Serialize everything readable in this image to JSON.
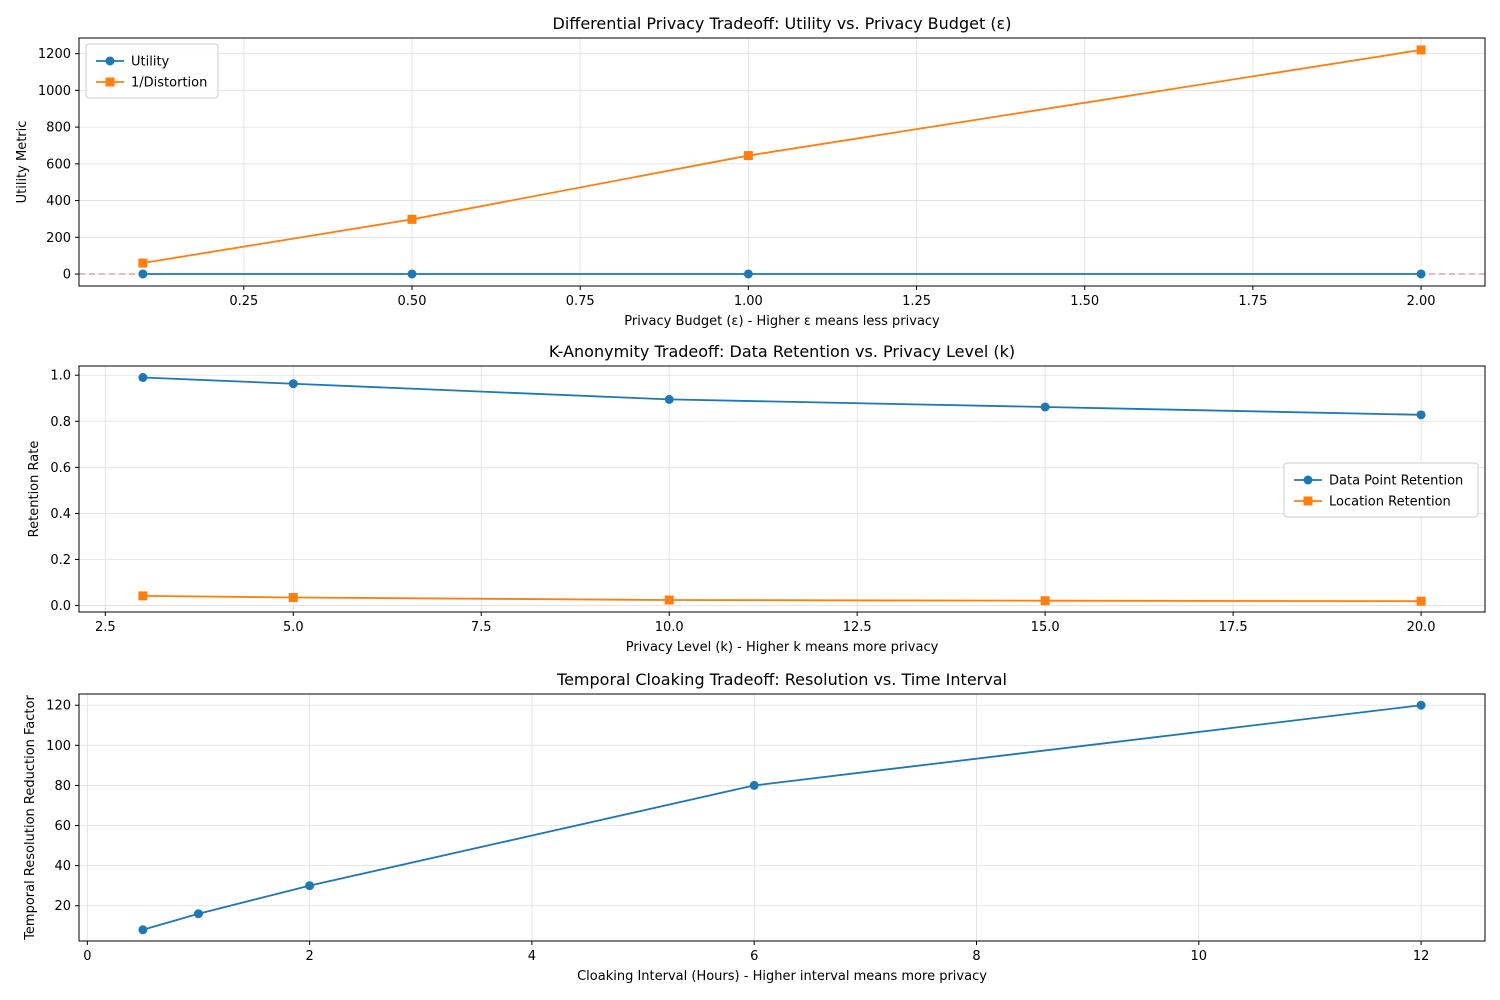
{
  "chart_data": [
    {
      "type": "line",
      "title": "Differential Privacy Tradeoff: Utility vs. Privacy Budget (ε)",
      "xlabel": "Privacy Budget (ε) - Higher ε means less privacy",
      "ylabel": "Utility Metric",
      "xlim": [
        0.005,
        2.095
      ],
      "ylim": [
        -65,
        1285
      ],
      "xticks": [
        0.25,
        0.5,
        0.75,
        1.0,
        1.25,
        1.5,
        1.75,
        2.0
      ],
      "xtick_labels": [
        "0.25",
        "0.50",
        "0.75",
        "1.00",
        "1.25",
        "1.50",
        "1.75",
        "2.00"
      ],
      "yticks": [
        0,
        200,
        400,
        600,
        800,
        1000,
        1200
      ],
      "ytick_labels": [
        "0",
        "200",
        "400",
        "600",
        "800",
        "1000",
        "1200"
      ],
      "grid": true,
      "legend_loc": "upper-left",
      "reference_line": {
        "y": 0,
        "color": "#e8a0a0",
        "style": "dashed"
      },
      "x": [
        0.1,
        0.5,
        1.0,
        2.0
      ],
      "series": [
        {
          "name": "Utility",
          "values": [
            0.5,
            0.5,
            0.5,
            0.5
          ],
          "color": "#1f77b4",
          "marker": "circle"
        },
        {
          "name": "1/Distortion",
          "values": [
            60,
            298,
            645,
            1220
          ],
          "color": "#ff7f0e",
          "marker": "square"
        }
      ]
    },
    {
      "type": "line",
      "title": "K-Anonymity Tradeoff: Data Retention vs. Privacy Level (k)",
      "xlabel": "Privacy Level (k) - Higher k means more privacy",
      "ylabel": "Retention Rate",
      "xlim": [
        2.15,
        20.85
      ],
      "ylim": [
        -0.028,
        1.04
      ],
      "xticks": [
        2.5,
        5.0,
        7.5,
        10.0,
        12.5,
        15.0,
        17.5,
        20.0
      ],
      "xtick_labels": [
        "2.5",
        "5.0",
        "7.5",
        "10.0",
        "12.5",
        "15.0",
        "17.5",
        "20.0"
      ],
      "yticks": [
        0.0,
        0.2,
        0.4,
        0.6,
        0.8,
        1.0
      ],
      "ytick_labels": [
        "0.0",
        "0.2",
        "0.4",
        "0.6",
        "0.8",
        "1.0"
      ],
      "grid": true,
      "legend_loc": "center-right",
      "x": [
        3,
        5,
        10,
        15,
        20
      ],
      "series": [
        {
          "name": "Data Point Retention",
          "values": [
            0.99,
            0.963,
            0.895,
            0.862,
            0.828
          ],
          "color": "#1f77b4",
          "marker": "circle"
        },
        {
          "name": "Location Retention",
          "values": [
            0.042,
            0.035,
            0.024,
            0.021,
            0.019
          ],
          "color": "#ff7f0e",
          "marker": "square"
        }
      ]
    },
    {
      "type": "line",
      "title": "Temporal Cloaking Tradeoff: Resolution vs. Time Interval",
      "xlabel": "Cloaking Interval (Hours) - Higher interval means more privacy",
      "ylabel": "Temporal Resolution Reduction Factor",
      "xlim": [
        -0.075,
        12.575
      ],
      "ylim": [
        2.4,
        125.6
      ],
      "xticks": [
        0,
        2,
        4,
        6,
        8,
        10,
        12
      ],
      "xtick_labels": [
        "0",
        "2",
        "4",
        "6",
        "8",
        "10",
        "12"
      ],
      "yticks": [
        20,
        40,
        60,
        80,
        100,
        120
      ],
      "ytick_labels": [
        "20",
        "40",
        "60",
        "80",
        "100",
        "120"
      ],
      "grid": true,
      "legend_loc": "none",
      "x": [
        0.5,
        1,
        2,
        6,
        12
      ],
      "series": [
        {
          "values": [
            8,
            16,
            30,
            80,
            120
          ],
          "color": "#1f77b4",
          "marker": "circle"
        }
      ]
    }
  ]
}
